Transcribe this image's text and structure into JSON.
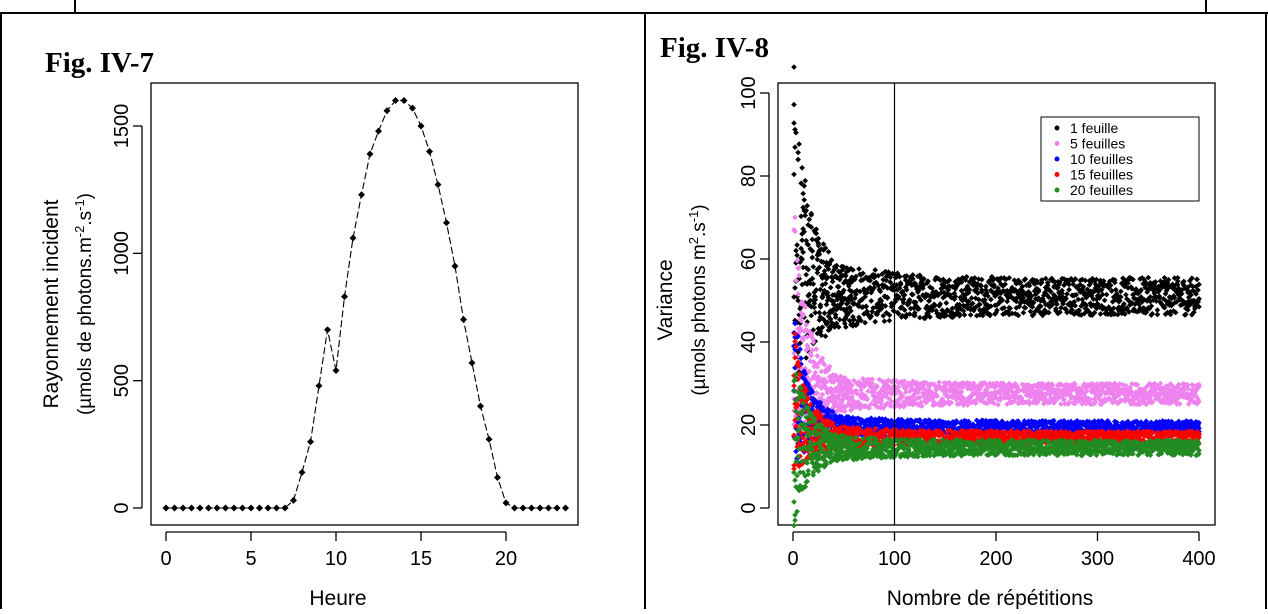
{
  "chart_data": [
    {
      "figure_label": "Fig. IV-7",
      "type": "line",
      "xlabel": "Heure",
      "ylabel_line1": "Rayonnement incident",
      "ylabel_line2": "(µmols de photons.m",
      "ylabel_sup1": "-2",
      "ylabel_mid": ".s",
      "ylabel_sup2": "-1",
      "ylabel_end": ")",
      "xlim": [
        0,
        23.5
      ],
      "ylim": [
        0,
        1600
      ],
      "xticks": [
        0,
        5,
        10,
        15,
        20
      ],
      "yticks": [
        0,
        500,
        1000,
        1500
      ],
      "series": [
        {
          "x": [
            0,
            0.5,
            1,
            1.5,
            2,
            2.5,
            3,
            3.5,
            4,
            4.5,
            5,
            5.5,
            6,
            6.5,
            7,
            7.5,
            8,
            8.5,
            9,
            9.5,
            10,
            10.5,
            11,
            11.5,
            12,
            12.5,
            13,
            13.5,
            14,
            14.5,
            15,
            15.5,
            16,
            16.5,
            17,
            17.5,
            18,
            18.5,
            19,
            19.5,
            20,
            20.5,
            21,
            21.5,
            22,
            22.5,
            23,
            23.5
          ],
          "values": [
            0,
            0,
            0,
            0,
            0,
            0,
            0,
            0,
            0,
            0,
            0,
            0,
            0,
            0,
            0,
            30,
            140,
            260,
            480,
            700,
            540,
            830,
            1060,
            1230,
            1390,
            1480,
            1560,
            1600,
            1600,
            1570,
            1500,
            1400,
            1270,
            1120,
            950,
            740,
            570,
            400,
            270,
            120,
            20,
            0,
            0,
            0,
            0,
            0,
            0,
            0
          ]
        }
      ]
    },
    {
      "figure_label": "Fig. IV-8",
      "type": "scatter",
      "xlabel": "Nombre de répétitions",
      "ylabel_line1": "Variance",
      "ylabel_line2": "(µmols photons m",
      "ylabel_sup1": "2",
      "ylabel_mid": ".s",
      "ylabel_sup2": "-1",
      "ylabel_end": ")",
      "xlim": [
        0,
        400
      ],
      "ylim": [
        0,
        100
      ],
      "xticks": [
        0,
        100,
        200,
        300,
        400
      ],
      "yticks": [
        0,
        20,
        40,
        60,
        80,
        100
      ],
      "vline": 100,
      "legend_position": "top-right",
      "series": [
        {
          "name": "1 feuille",
          "color": "#000000",
          "steady": 51,
          "halfwidth": 4.5,
          "start_low": 38,
          "start_high": 95
        },
        {
          "name": "5 feuilles",
          "color": "#ee82ee",
          "steady": 27.5,
          "halfwidth": 2.5,
          "start_low": 20,
          "start_high": 68
        },
        {
          "name": "10 feuilles",
          "color": "#0000ff",
          "steady": 19.5,
          "halfwidth": 1.5,
          "start_low": 12,
          "start_high": 45
        },
        {
          "name": "15 feuilles",
          "color": "#ff0000",
          "steady": 17,
          "halfwidth": 1.5,
          "start_low": 10,
          "start_high": 40
        },
        {
          "name": "20 feuilles",
          "color": "#228b22",
          "steady": 14.5,
          "halfwidth": 1.8,
          "start_low": 0,
          "start_high": 33
        }
      ]
    }
  ]
}
